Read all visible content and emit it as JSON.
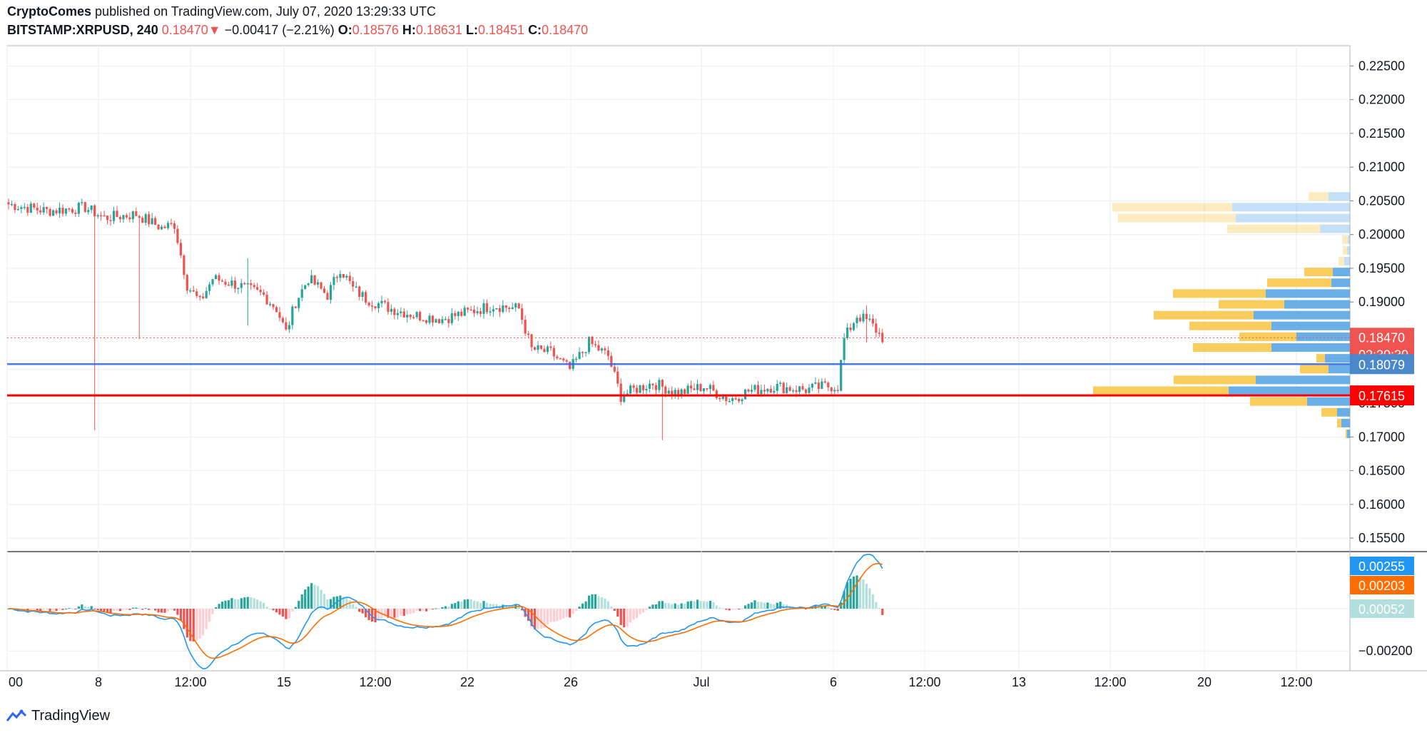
{
  "header": {
    "author": "CryptoComes",
    "published_text": "published on TradingView.com, July 07, 2020 13:29:33 UTC",
    "symbol": "BITSTAMP:XRPUSD, 240",
    "last": "0.18470",
    "change_arrow": "▼",
    "change": "−0.00417 (−2.21%)",
    "o_label": "O:",
    "o": "0.18576",
    "h_label": "H:",
    "h": "0.18631",
    "l_label": "L:",
    "l": "0.18451",
    "c_label": "C:",
    "c": "0.18470"
  },
  "brand": {
    "name": "TradingView",
    "icon": "tradingview-logo-icon"
  },
  "colors": {
    "up": "#26a69a",
    "down": "#ef5350",
    "blue_level": "#2962ff",
    "red_level": "#ff0000",
    "vp_up": "#5aa5e6",
    "vp_down": "#f7c64b",
    "macd": "#2196f3",
    "signal": "#ff6d00"
  },
  "chart_data": [
    {
      "type": "candlestick",
      "pane": "price",
      "x_ticks": [
        "00",
        "8",
        "12:00",
        "15",
        "12:00",
        "22",
        "26",
        "Jul",
        "6",
        "12:00",
        "13",
        "12:00",
        "20",
        "12:00"
      ],
      "y_ticks": [
        "0.22500",
        "0.22000",
        "0.21500",
        "0.21000",
        "0.20500",
        "0.20000",
        "0.19500",
        "0.19000",
        "0.17500",
        "0.17000",
        "0.16500",
        "0.16000",
        "0.15500"
      ],
      "ylim": [
        0.153,
        0.228
      ],
      "price_tags": [
        {
          "value": "0.18470",
          "sub": "02:30:30",
          "price": 0.1847,
          "color": "#ef5350"
        },
        {
          "value": "0.18079",
          "price": 0.18079,
          "color": "#4a88c9"
        },
        {
          "value": "0.17615",
          "price": 0.17615,
          "color": "#ff0000"
        }
      ],
      "levels": [
        {
          "price": 0.18079,
          "color": "#2962ff"
        },
        {
          "price": 0.17615,
          "color": "#ff0000"
        }
      ],
      "waypoints": [
        [
          0,
          0.2045
        ],
        [
          12,
          0.2035
        ],
        [
          24,
          0.204
        ],
        [
          30,
          0.2025
        ],
        [
          40,
          0.203
        ],
        [
          48,
          0.201
        ],
        [
          52,
          0.2015
        ],
        [
          56,
          0.1925
        ],
        [
          60,
          0.19
        ],
        [
          64,
          0.1935
        ],
        [
          72,
          0.1925
        ],
        [
          80,
          0.191
        ],
        [
          84,
          0.189
        ],
        [
          87,
          0.1855
        ],
        [
          90,
          0.19
        ],
        [
          94,
          0.1935
        ],
        [
          100,
          0.191
        ],
        [
          104,
          0.195
        ],
        [
          108,
          0.192
        ],
        [
          112,
          0.1905
        ],
        [
          120,
          0.189
        ],
        [
          128,
          0.188
        ],
        [
          136,
          0.1875
        ],
        [
          144,
          0.1885
        ],
        [
          152,
          0.1895
        ],
        [
          160,
          0.189
        ],
        [
          164,
          0.183
        ],
        [
          170,
          0.1825
        ],
        [
          176,
          0.18
        ],
        [
          182,
          0.184
        ],
        [
          188,
          0.182
        ],
        [
          192,
          0.176
        ],
        [
          196,
          0.177
        ],
        [
          202,
          0.178
        ],
        [
          210,
          0.1765
        ],
        [
          218,
          0.1775
        ],
        [
          226,
          0.1755
        ],
        [
          232,
          0.1768
        ],
        [
          240,
          0.1775
        ],
        [
          250,
          0.177
        ],
        [
          256,
          0.1775
        ],
        [
          260,
          0.1775
        ],
        [
          262,
          0.1845
        ],
        [
          266,
          0.188
        ],
        [
          270,
          0.187
        ],
        [
          274,
          0.1847
        ]
      ],
      "volume_profile": [
        {
          "price": 0.2056,
          "up": 30,
          "down": 28
        },
        {
          "price": 0.204,
          "up": 165,
          "down": 168
        },
        {
          "price": 0.2024,
          "up": 160,
          "down": 165
        },
        {
          "price": 0.2008,
          "up": 42,
          "down": 130
        },
        {
          "price": 0.1992,
          "up": 3,
          "down": 8
        },
        {
          "price": 0.1976,
          "up": 4,
          "down": 6
        },
        {
          "price": 0.196,
          "up": 8,
          "down": 8
        },
        {
          "price": 0.1944,
          "up": 24,
          "down": 40
        },
        {
          "price": 0.1928,
          "up": 26,
          "down": 90
        },
        {
          "price": 0.1912,
          "up": 118,
          "down": 130
        },
        {
          "price": 0.1896,
          "up": 92,
          "down": 92
        },
        {
          "price": 0.188,
          "up": 135,
          "down": 140
        },
        {
          "price": 0.1864,
          "up": 110,
          "down": 115
        },
        {
          "price": 0.1848,
          "up": 75,
          "down": 80
        },
        {
          "price": 0.1832,
          "up": 110,
          "down": 110
        },
        {
          "price": 0.1816,
          "up": 35,
          "down": 12
        },
        {
          "price": 0.18,
          "up": 30,
          "down": 40
        },
        {
          "price": 0.1784,
          "up": 132,
          "down": 115
        },
        {
          "price": 0.1768,
          "up": 170,
          "down": 190
        },
        {
          "price": 0.1752,
          "up": 60,
          "down": 80
        },
        {
          "price": 0.1736,
          "up": 18,
          "down": 22
        },
        {
          "price": 0.172,
          "up": 12,
          "down": 6
        },
        {
          "price": 0.1704,
          "up": 4,
          "down": 2
        }
      ]
    },
    {
      "type": "macd",
      "pane": "indicator",
      "y_ticks": [
        "0.00000",
        "−0.00200"
      ],
      "ylim": [
        -0.0034,
        0.0034
      ],
      "tags": [
        {
          "value": "0.00255",
          "color": "#2196f3"
        },
        {
          "value": "0.00203",
          "color": "#ff6d00"
        },
        {
          "value": "0.00052",
          "color": "#b2dfdb",
          "text_color": "#131722"
        }
      ]
    }
  ]
}
